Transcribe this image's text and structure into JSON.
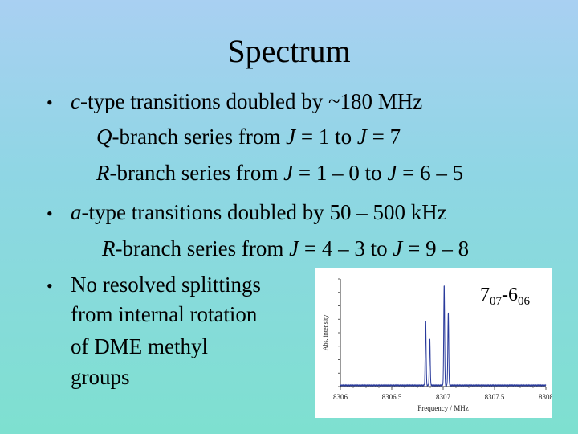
{
  "slide": {
    "title": "Spectrum",
    "bullets": [
      {
        "marker": "•",
        "parts": [
          {
            "t": "c",
            "i": true
          },
          {
            "t": "-type transitions doubled by ~180 MHz"
          }
        ]
      },
      {
        "marker": "",
        "parts": [
          {
            "t": "Q",
            "i": true
          },
          {
            "t": "-branch series from "
          },
          {
            "t": "J",
            "i": true
          },
          {
            "t": " = 1 to  "
          },
          {
            "t": "J",
            "i": true
          },
          {
            "t": " = 7"
          }
        ]
      },
      {
        "marker": "",
        "parts": [
          {
            "t": "R",
            "i": true
          },
          {
            "t": "-branch series from "
          },
          {
            "t": "J",
            "i": true
          },
          {
            "t": " = 1 – 0 to  "
          },
          {
            "t": "J",
            "i": true
          },
          {
            "t": " = 6 – 5"
          }
        ]
      },
      {
        "marker": "•",
        "parts": [
          {
            "t": "a",
            "i": true
          },
          {
            "t": "-type transitions doubled by 50 – 500 kHz"
          }
        ]
      },
      {
        "marker": "",
        "parts": [
          {
            "t": "R",
            "i": true
          },
          {
            "t": "-branch series from "
          },
          {
            "t": "J",
            "i": true
          },
          {
            "t": " = 4 – 3 to  "
          },
          {
            "t": "J",
            "i": true
          },
          {
            "t": " = 9 – 8"
          }
        ]
      },
      {
        "marker": "•",
        "parts": [
          {
            "t": "No resolved splittings"
          }
        ]
      },
      {
        "marker": "",
        "parts": [
          {
            "t": "from internal rotation"
          }
        ]
      },
      {
        "marker": "",
        "parts": [
          {
            "t": "of DME methyl"
          }
        ]
      },
      {
        "marker": "",
        "parts": [
          {
            "t": "groups"
          }
        ]
      }
    ]
  },
  "transition_label": {
    "main1": "7",
    "sub1": "07",
    "sep": "-",
    "main2": "6",
    "sub2": "06"
  },
  "chart_data": {
    "type": "line",
    "xlabel": "Frequency / MHz",
    "ylabel": "Abs. intensity",
    "xlim": [
      8306,
      8308
    ],
    "x_ticks": [
      "8306",
      "8306.5",
      "8307",
      "8307.5",
      "8308"
    ],
    "peaks": [
      {
        "x": 8306.83,
        "height": 0.62
      },
      {
        "x": 8306.87,
        "height": 0.45
      },
      {
        "x": 8307.01,
        "height": 0.97
      },
      {
        "x": 8307.05,
        "height": 0.7
      }
    ],
    "line_color": "#2a3b9c"
  }
}
